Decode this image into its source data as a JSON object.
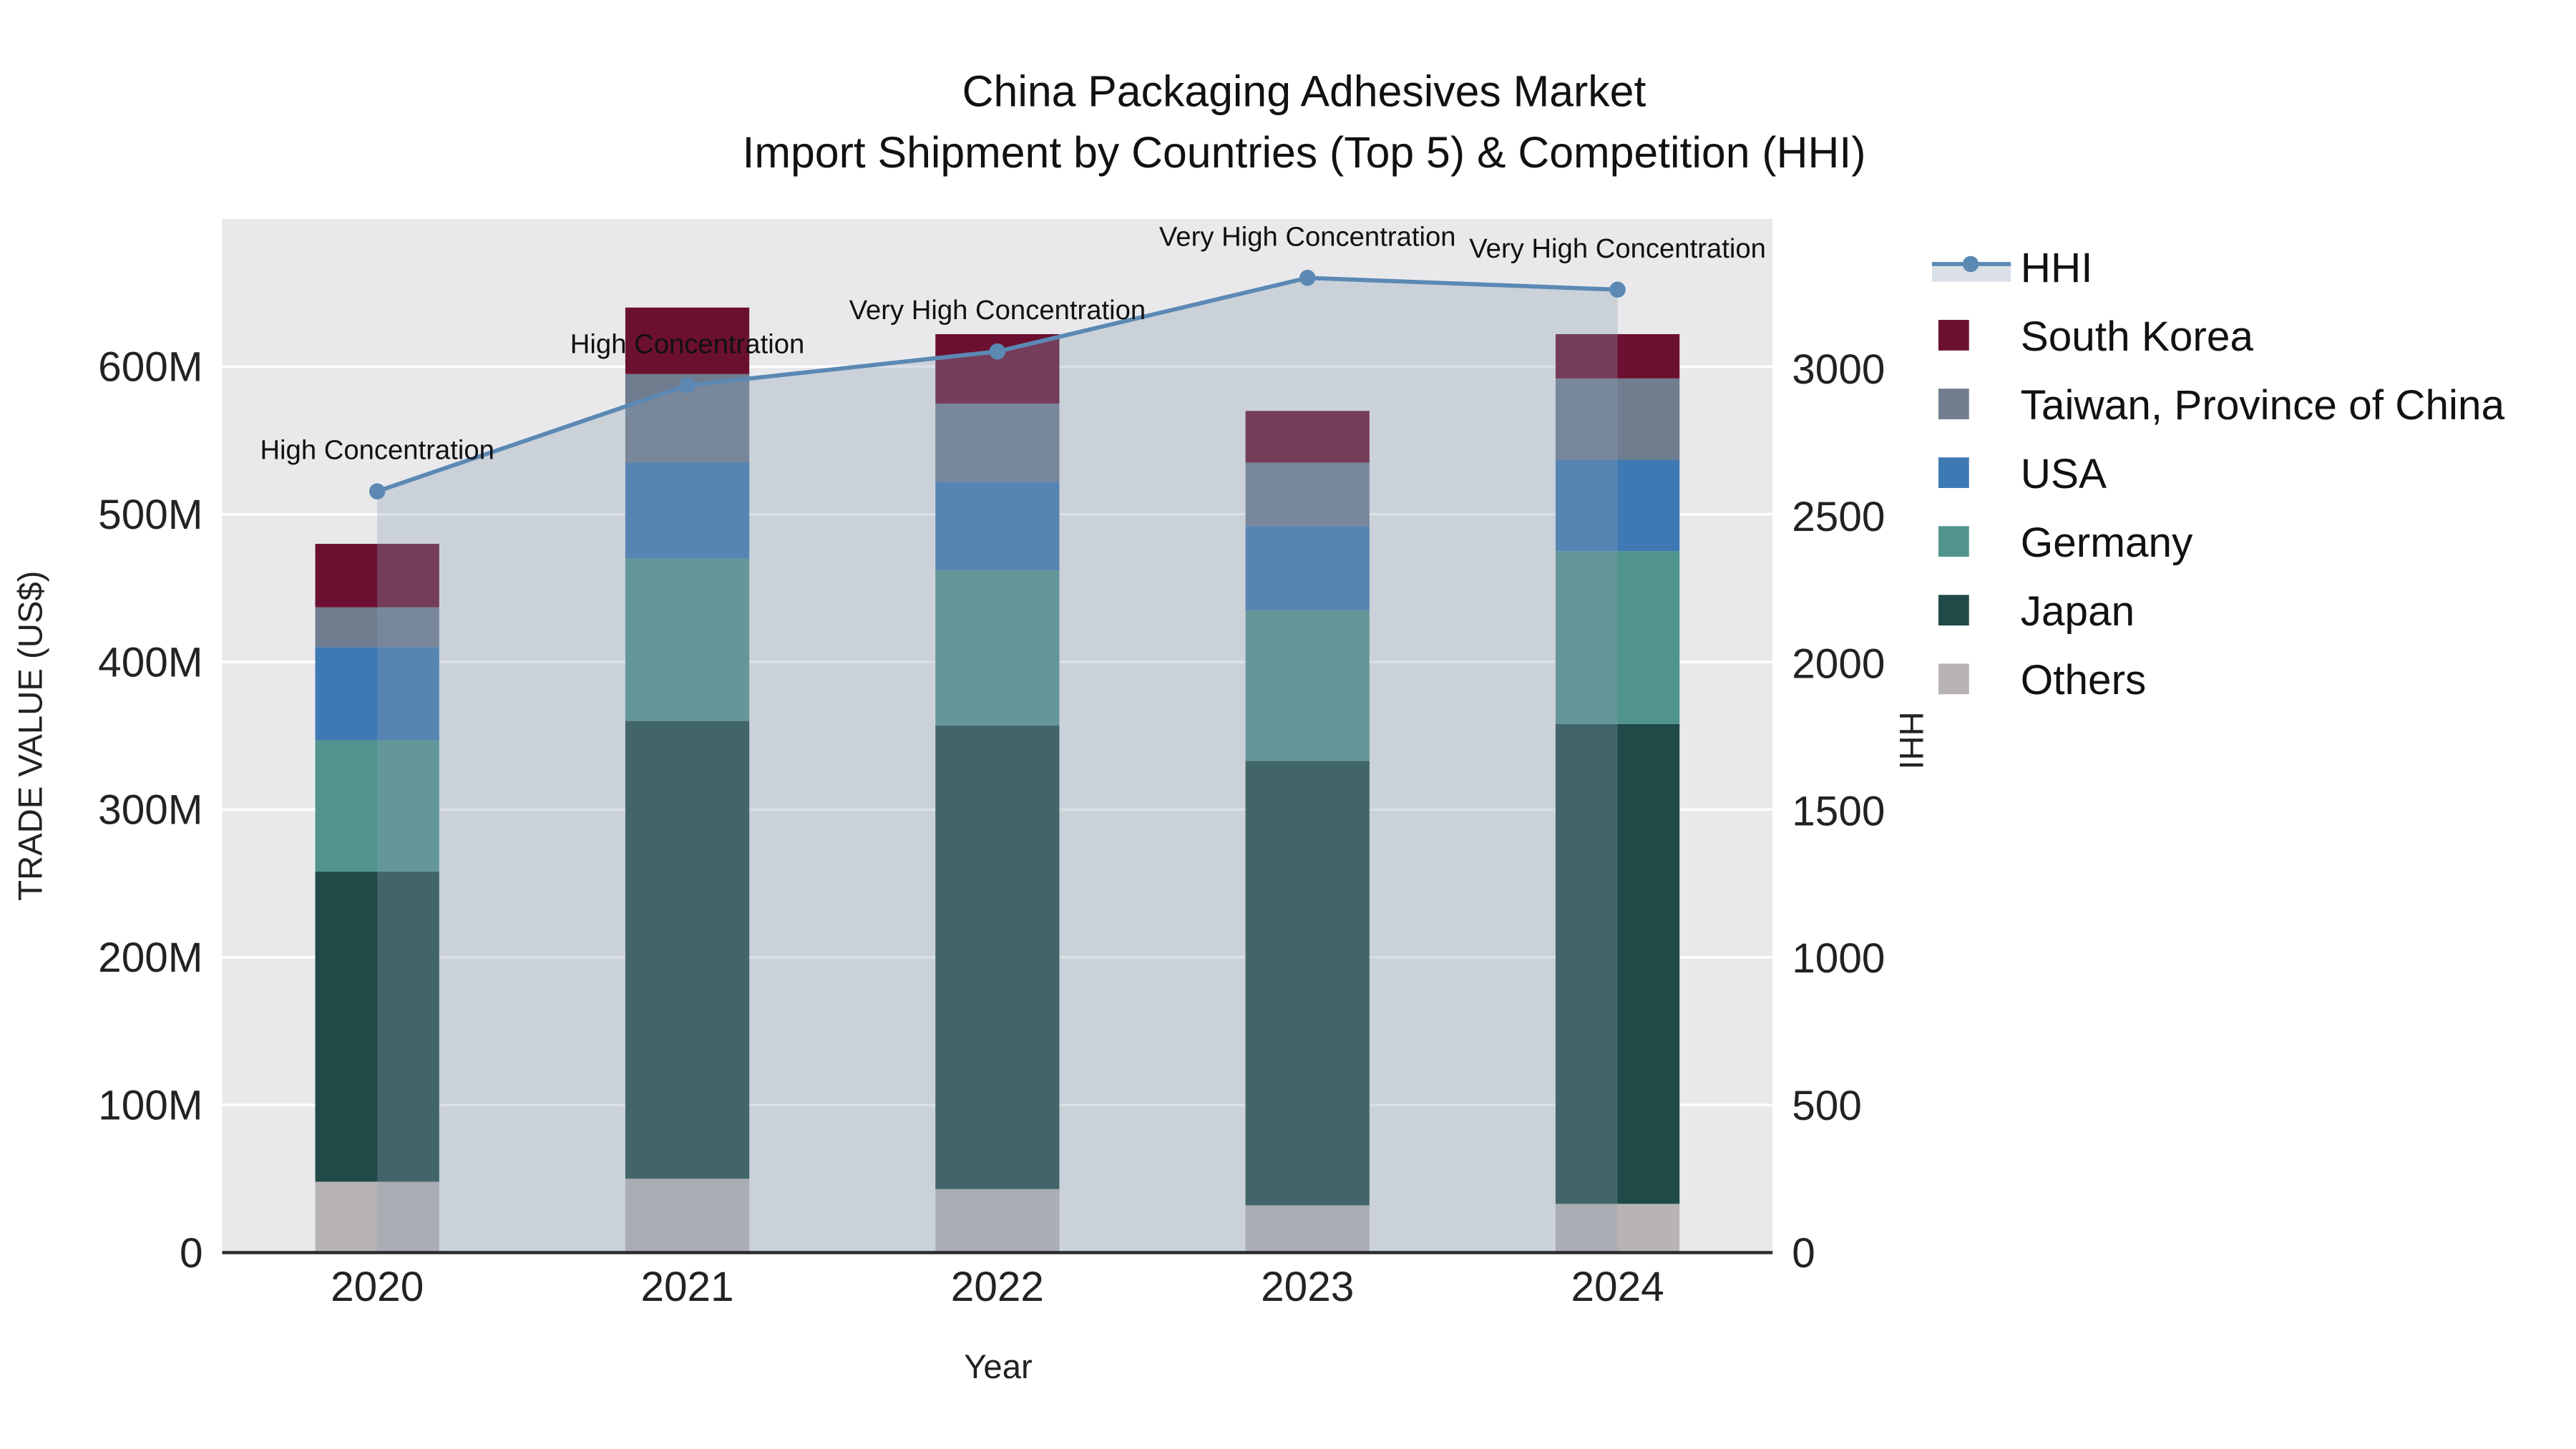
{
  "title": {
    "line1": "China Packaging Adhesives Market",
    "line2": "Import Shipment by Countries (Top 5) & Competition (HHI)"
  },
  "axes": {
    "x_label": "Year",
    "y_left_label": "TRADE VALUE (US$)",
    "y_right_label": "HHI"
  },
  "legend": {
    "items": [
      {
        "label": "HHI",
        "type": "line",
        "color": "#5b89b4"
      },
      {
        "label": "South Korea",
        "type": "square",
        "color": "#6b1030"
      },
      {
        "label": "Taiwan, Province of China",
        "type": "square",
        "color": "#6f7d8f"
      },
      {
        "label": "USA",
        "type": "square",
        "color": "#3e79b4"
      },
      {
        "label": "Germany",
        "type": "square",
        "color": "#51948e"
      },
      {
        "label": "Japan",
        "type": "square",
        "color": "#1f4a48"
      },
      {
        "label": "Others",
        "type": "square",
        "color": "#b8b4b6"
      }
    ]
  },
  "chart_data": {
    "type": "bar",
    "subtype": "stacked-bars-with-hhi-line",
    "title": "China Packaging Adhesives Market",
    "subtitle": "Import Shipment by Countries (Top 5) & Competition (HHI)",
    "x_label": "Year",
    "categories": [
      "2020",
      "2021",
      "2022",
      "2023",
      "2024"
    ],
    "bar_value_unit": "USD millions",
    "series": [
      {
        "name": "Others",
        "color": "#b8b4b6",
        "values": [
          48,
          50,
          43,
          32,
          33
        ]
      },
      {
        "name": "Japan",
        "color": "#1f4a48",
        "values": [
          210,
          310,
          314,
          301,
          325
        ]
      },
      {
        "name": "Germany",
        "color": "#51948e",
        "values": [
          89,
          110,
          105,
          102,
          117
        ]
      },
      {
        "name": "USA",
        "color": "#3e79b4",
        "values": [
          63,
          65,
          60,
          57,
          62
        ]
      },
      {
        "name": "Taiwan, Province of China",
        "color": "#6f7d8f",
        "values": [
          27,
          60,
          53,
          43,
          55
        ]
      },
      {
        "name": "South Korea",
        "color": "#6b1030",
        "values": [
          43,
          45,
          47,
          35,
          30
        ]
      }
    ],
    "bar_totals": [
      480,
      640,
      622,
      570,
      622
    ],
    "line_series": {
      "name": "HHI",
      "axis": "right",
      "color": "#5b89b4",
      "area_fill_color": "rgba(141,160,178,0.32)",
      "values": [
        2585,
        2945,
        3060,
        3310,
        3270
      ]
    },
    "annotations": [
      {
        "category_index": 0,
        "text": "High Concentration"
      },
      {
        "category_index": 1,
        "text": "High Concentration"
      },
      {
        "category_index": 2,
        "text": "Very High Concentration"
      },
      {
        "category_index": 3,
        "text": "Very High Concentration"
      },
      {
        "category_index": 4,
        "text": "Very High Concentration"
      }
    ],
    "y_left": {
      "label": "TRADE VALUE (US$)",
      "max": 700,
      "ticks": [
        {
          "value": 0,
          "label": "0"
        },
        {
          "value": 100,
          "label": "100M"
        },
        {
          "value": 200,
          "label": "200M"
        },
        {
          "value": 300,
          "label": "300M"
        },
        {
          "value": 400,
          "label": "400M"
        },
        {
          "value": 500,
          "label": "500M"
        },
        {
          "value": 600,
          "label": "600M"
        }
      ]
    },
    "y_right": {
      "label": "HHI",
      "max": 3510,
      "ticks": [
        {
          "value": 0,
          "label": "0"
        },
        {
          "value": 500,
          "label": "500"
        },
        {
          "value": 1000,
          "label": "1000"
        },
        {
          "value": 1500,
          "label": "1500"
        },
        {
          "value": 2000,
          "label": "2000"
        },
        {
          "value": 2500,
          "label": "2500"
        },
        {
          "value": 3000,
          "label": "3000"
        }
      ]
    },
    "legend_position": "right",
    "grid": true
  }
}
